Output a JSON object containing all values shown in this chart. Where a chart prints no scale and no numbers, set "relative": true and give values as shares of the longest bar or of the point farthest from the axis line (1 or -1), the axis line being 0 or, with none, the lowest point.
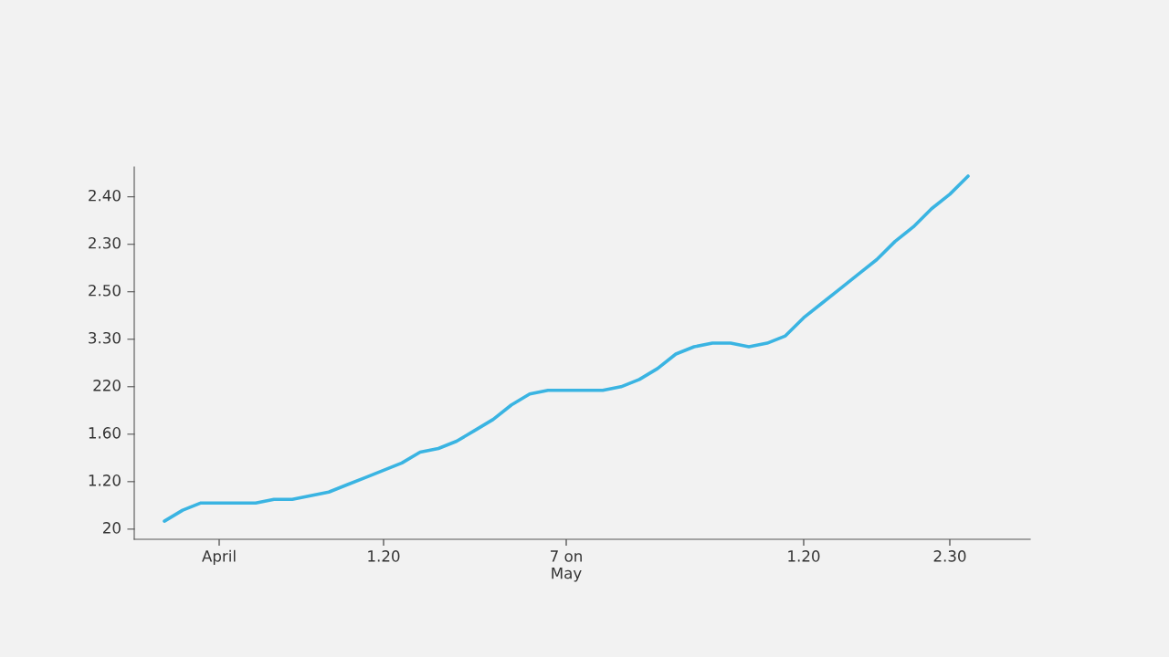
{
  "chart_data": {
    "type": "line",
    "relative": true,
    "categories": [
      null,
      null,
      null,
      "April",
      null,
      null,
      null,
      null,
      null,
      null,
      null,
      null,
      "1.20",
      null,
      null,
      null,
      null,
      null,
      null,
      null,
      null,
      null,
      "7 on\nMay",
      null,
      null,
      null,
      null,
      null,
      null,
      null,
      null,
      null,
      null,
      null,
      null,
      "1.20",
      null,
      null,
      null,
      null,
      null,
      null,
      null,
      "2.30",
      null
    ],
    "series": [
      {
        "color": "#3ab4e2",
        "values": [
          0.05,
          0.08,
          0.1,
          0.1,
          0.1,
          0.1,
          0.11,
          0.11,
          0.12,
          0.13,
          0.15,
          0.17,
          0.19,
          0.21,
          0.24,
          0.25,
          0.27,
          0.3,
          0.33,
          0.37,
          0.4,
          0.41,
          0.41,
          0.41,
          0.41,
          0.42,
          0.44,
          0.47,
          0.51,
          0.53,
          0.54,
          0.54,
          0.53,
          0.54,
          0.56,
          0.61,
          0.65,
          0.69,
          0.73,
          0.77,
          0.82,
          0.86,
          0.91,
          0.95,
          1.0
        ]
      }
    ],
    "annotations": [
      "20",
      "1.20",
      "1.60",
      "220",
      "3.30",
      "2.50",
      "2.30",
      "2.40"
    ],
    "grid": false,
    "marker": "none",
    "line_style": "solid"
  }
}
